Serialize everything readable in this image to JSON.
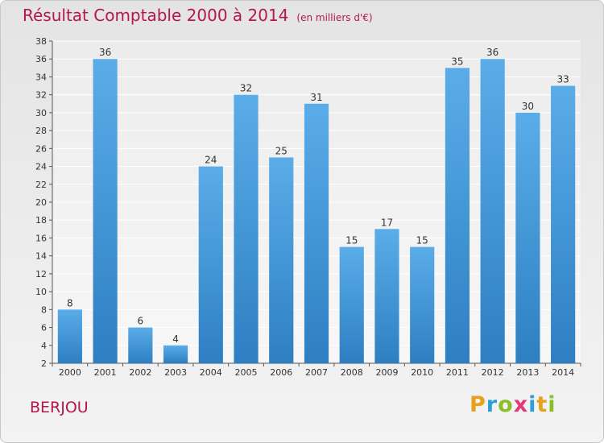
{
  "title": "Résultat Comptable 2000 à 2014",
  "subtitle": "(en milliers d'€)",
  "place": "BERJOU",
  "logo": {
    "letters": [
      "P",
      "r",
      "o",
      "x",
      "i",
      "t",
      "i"
    ],
    "colors": [
      "#e8a11c",
      "#2f9fd8",
      "#8bbf2a",
      "#e03a7a",
      "#2f9fd8",
      "#e8a11c",
      "#8bbf2a"
    ]
  },
  "chart_data": {
    "type": "bar",
    "categories": [
      "2000",
      "2001",
      "2002",
      "2003",
      "2004",
      "2005",
      "2006",
      "2007",
      "2008",
      "2009",
      "2010",
      "2011",
      "2012",
      "2013",
      "2014"
    ],
    "values": [
      8,
      36,
      6,
      4,
      24,
      32,
      25,
      31,
      15,
      17,
      15,
      35,
      36,
      30,
      33
    ],
    "ylim": [
      2,
      38
    ],
    "yticks": [
      2,
      4,
      6,
      8,
      10,
      12,
      14,
      16,
      18,
      20,
      22,
      24,
      26,
      28,
      30,
      32,
      34,
      36,
      38
    ],
    "grid": true,
    "bar_color": "#4a9ee0"
  }
}
